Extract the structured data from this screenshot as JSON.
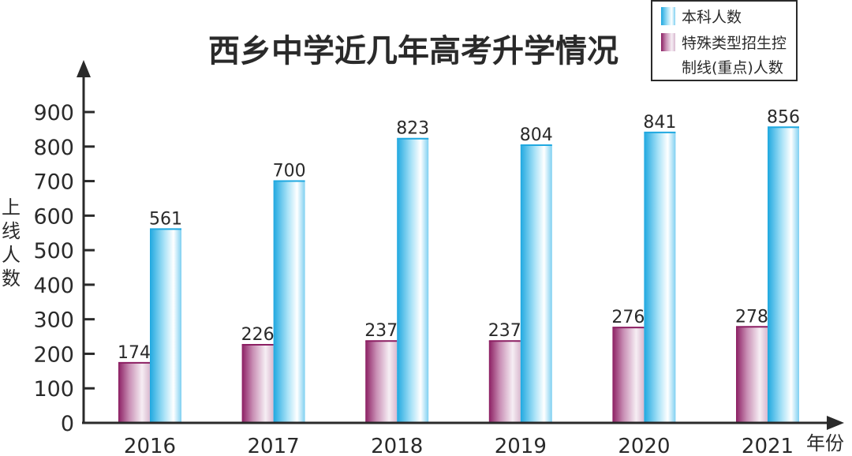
{
  "chart_data": {
    "type": "bar",
    "title": "西乡中学近几年高考升学情况",
    "xlabel": "年份",
    "ylabel": "上线人数",
    "categories": [
      "2016",
      "2017",
      "2018",
      "2019",
      "2020",
      "2021"
    ],
    "series": [
      {
        "name": "特殊类型招生控制线(重点)人数",
        "values": [
          174,
          226,
          237,
          237,
          276,
          278
        ],
        "color": "#a0306f"
      },
      {
        "name": "本科人数",
        "values": [
          561,
          700,
          823,
          804,
          841,
          856
        ],
        "color": "#33b4e6"
      }
    ],
    "yticks": [
      0,
      100,
      200,
      300,
      400,
      500,
      600,
      700,
      800,
      900
    ],
    "ylim": [
      0,
      900
    ],
    "grid": false,
    "legend": {
      "position": "top-right",
      "entries": [
        {
          "series": 1,
          "lines": [
            "本科人数"
          ]
        },
        {
          "series": 0,
          "lines": [
            "特殊类型招生控",
            "制线(重点)人数"
          ]
        }
      ]
    }
  }
}
